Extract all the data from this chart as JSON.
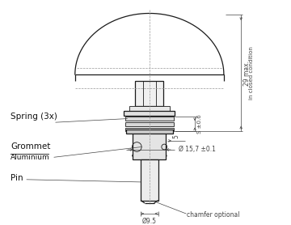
{
  "bg_color": "#ffffff",
  "line_color": "#1a1a1a",
  "dim_color": "#444444",
  "centerline_color": "#999999",
  "labels": {
    "spring": "Spring (3x)",
    "grommet": "Grommet",
    "aluminium": "Aluminium",
    "pin": "Pin",
    "chamfer": "chamfer optional",
    "dim_29": "29 max.",
    "dim_s": "S ±0.6",
    "dim_5": "5",
    "dim_phi_157": "Ø 15,7 ±0.1",
    "dim_phi_95": "Ø9.5",
    "in_closed": "in closed condition"
  }
}
